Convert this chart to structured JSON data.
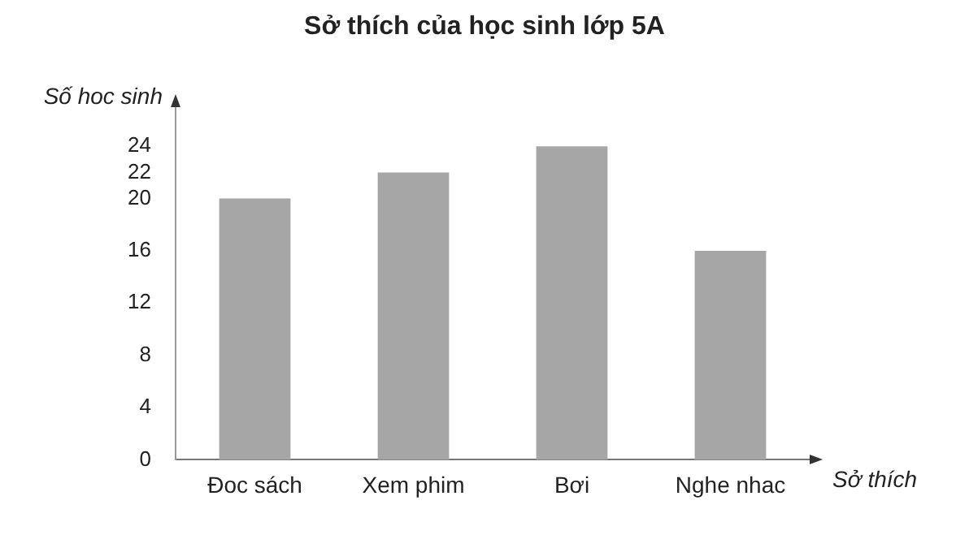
{
  "chart_data": {
    "type": "bar",
    "title": "Sở thích của học sinh lớp 5A",
    "xlabel": "Sở thích",
    "ylabel": "Số hoc sinh",
    "categories": [
      "Đoc sách",
      "Xem phim",
      "Bơi",
      "Nghe nhac"
    ],
    "values": [
      20,
      22,
      24,
      16
    ],
    "color": "#a6a6a6",
    "ylim": [
      0,
      27
    ],
    "yticks": [
      0,
      4,
      8,
      12,
      16,
      20,
      22,
      24
    ],
    "grid": false,
    "legend": false
  }
}
